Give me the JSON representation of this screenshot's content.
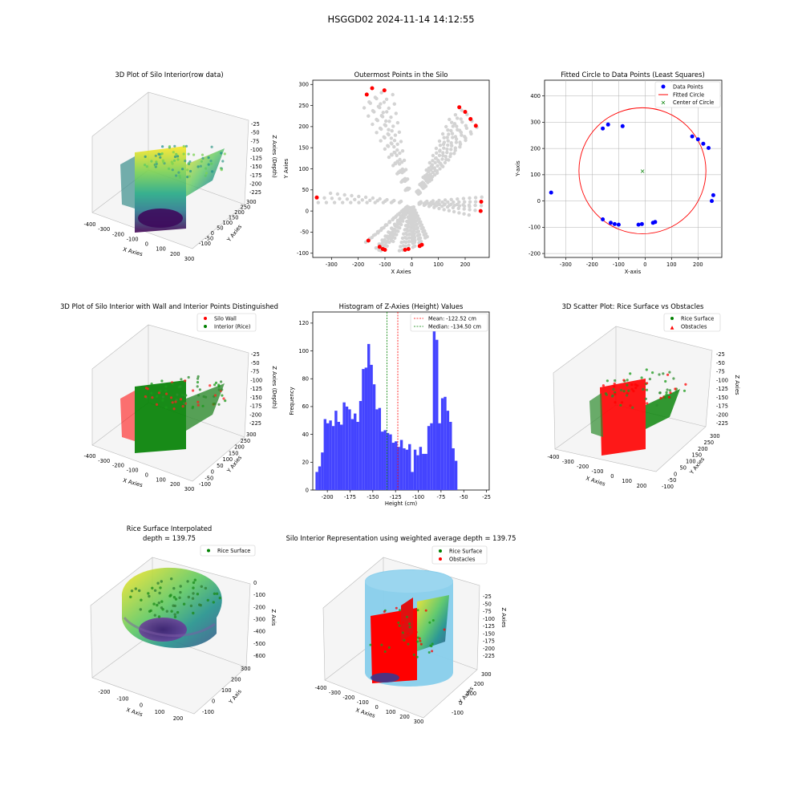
{
  "figure": {
    "suptitle": "HSGGD02 2024-11-14 14:12:55"
  },
  "colors": {
    "red": "#ff0000",
    "green": "#008000",
    "blue": "#0000ff",
    "gray": "#d3d3d3",
    "skyblue": "#87ceeb",
    "hist": "#4444ff"
  },
  "chart_data": [
    {
      "type": "scatter",
      "projection": "3d",
      "title": "3D Plot of Silo Interior(row data)",
      "xlabel": "X Axies",
      "ylabel": "Y Axies",
      "zlabel": "Z Axies (Depth)",
      "xticks": [
        "-400",
        "-300",
        "-200",
        "-100",
        "0",
        "100",
        "200",
        "300"
      ],
      "yticks": [
        "-100",
        "-50",
        "0",
        "50",
        "100",
        "150",
        "200",
        "250",
        "300"
      ],
      "zticks": [
        "-25",
        "-50",
        "-75",
        "-100",
        "-125",
        "-150",
        "-175",
        "-200",
        "-225"
      ],
      "xlim": [
        -400,
        300
      ],
      "ylim": [
        -100,
        300
      ],
      "zlim": [
        -225,
        -25
      ],
      "colormap": "viridis"
    },
    {
      "type": "scatter",
      "title": "Outermost Points in the Silo",
      "xlabel": "X Axies",
      "ylabel": "Y Axies",
      "xlim": [
        -370,
        290
      ],
      "ylim": [
        -110,
        310
      ],
      "xticks": [
        -300,
        -200,
        -100,
        0,
        100,
        200
      ],
      "yticks": [
        -100,
        -50,
        0,
        50,
        100,
        150,
        200,
        250,
        300
      ],
      "outer_points": [
        [
          -355,
          32
        ],
        [
          -168,
          276
        ],
        [
          -148,
          291
        ],
        [
          -102,
          286
        ],
        [
          -162,
          -70
        ],
        [
          -120,
          -85
        ],
        [
          -108,
          -90
        ],
        [
          -100,
          -92
        ],
        [
          -25,
          -92
        ],
        [
          -12,
          -90
        ],
        [
          30,
          -83
        ],
        [
          38,
          -80
        ],
        [
          178,
          246
        ],
        [
          200,
          235
        ],
        [
          220,
          218
        ],
        [
          240,
          202
        ],
        [
          260,
          22
        ],
        [
          258,
          0
        ]
      ]
    },
    {
      "type": "scatter",
      "title": "Fitted Circle to Data Points (Least Squares)",
      "xlabel": "X-axis",
      "ylabel": "Y-axis",
      "xlim": [
        -380,
        290
      ],
      "ylim": [
        -215,
        460
      ],
      "xticks": [
        -300,
        -200,
        -100,
        0,
        100,
        200
      ],
      "yticks": [
        -200,
        -100,
        0,
        100,
        200,
        300,
        400
      ],
      "grid": true,
      "legend": [
        "Data Points",
        "Fitted Circle",
        "Center of Circle"
      ],
      "legend_position": "top-right",
      "center": [
        -10,
        115
      ],
      "radius": 240,
      "points": [
        [
          -355,
          32
        ],
        [
          -160,
          276
        ],
        [
          -140,
          291
        ],
        [
          -85,
          285
        ],
        [
          -160,
          -70
        ],
        [
          -130,
          -83
        ],
        [
          -115,
          -88
        ],
        [
          -100,
          -90
        ],
        [
          -25,
          -90
        ],
        [
          -12,
          -88
        ],
        [
          30,
          -83
        ],
        [
          38,
          -80
        ],
        [
          178,
          246
        ],
        [
          200,
          235
        ],
        [
          220,
          218
        ],
        [
          240,
          202
        ],
        [
          258,
          22
        ],
        [
          252,
          0
        ]
      ]
    },
    {
      "type": "scatter",
      "projection": "3d",
      "title": "3D Plot of Silo Interior with Wall and Interior Points Distinguished",
      "xlabel": "X Axies",
      "ylabel": "Y Axies",
      "zlabel": "Z Axies (Depth)",
      "xticks": [
        "-400",
        "-300",
        "-200",
        "-100",
        "0",
        "100",
        "200",
        "300"
      ],
      "yticks": [
        "-100",
        "-50",
        "0",
        "50",
        "100",
        "150",
        "200",
        "250",
        "300"
      ],
      "zticks": [
        "-25",
        "-50",
        "-75",
        "-100",
        "-125",
        "-150",
        "-175",
        "-200",
        "-225"
      ],
      "legend": [
        "Silo Wall",
        "Interior (Rice)"
      ],
      "legend_position": "top-right"
    },
    {
      "type": "bar",
      "title": "Histogram of Z-Axies (Height) Values",
      "xlabel": "Height (cm)",
      "ylabel": "Frequency",
      "xlim": [
        -216,
        -22
      ],
      "ylim": [
        0,
        128
      ],
      "xticks": [
        -200,
        -175,
        -150,
        -125,
        -100,
        -75,
        -50,
        -25
      ],
      "yticks": [
        0,
        20,
        40,
        60,
        80,
        100,
        120
      ],
      "bin_start": -213,
      "bin_width": 3.0,
      "values": [
        13,
        17,
        27,
        51,
        48,
        50,
        46,
        57,
        49,
        47,
        63,
        60,
        58,
        51,
        55,
        49,
        64,
        87,
        88,
        105,
        90,
        76,
        58,
        59,
        42,
        43,
        41,
        40,
        34,
        35,
        31,
        36,
        30,
        29,
        33,
        13,
        29,
        25,
        31,
        26,
        26,
        46,
        48,
        116,
        108,
        48,
        66,
        67,
        57,
        49,
        30,
        21
      ],
      "mean": -122.52,
      "median": -134.5,
      "legend": [
        "Mean: -122.52 cm",
        "Median: -134.50 cm"
      ],
      "legend_position": "top-right"
    },
    {
      "type": "scatter",
      "projection": "3d",
      "title": "3D Scatter Plot: Rice Surface vs Obstacles",
      "xlabel": "X Axies",
      "ylabel": "Y Axies",
      "zlabel": "Z Axies",
      "xticks": [
        "-400",
        "-300",
        "-200",
        "-100",
        "0",
        "100",
        "200"
      ],
      "yticks": [
        "-100",
        "-50",
        "0",
        "50",
        "100",
        "150",
        "200",
        "250",
        "300"
      ],
      "zticks": [
        "-25",
        "-50",
        "-75",
        "-100",
        "-125",
        "-150",
        "-175",
        "-200",
        "-225"
      ],
      "legend": [
        "Rice Surface",
        "Obstacles"
      ],
      "legend_position": "top-right"
    },
    {
      "type": "scatter",
      "projection": "3d",
      "title": "Rice Surface Interpolated",
      "subtitle": "depth = 139.75",
      "xlabel": "X Axis",
      "ylabel": "Y Axis",
      "zlabel": "Z Axis",
      "xticks": [
        "-200",
        "-100",
        "0",
        "100",
        "200"
      ],
      "yticks": [
        "-100",
        "0",
        "100",
        "200",
        "300"
      ],
      "zticks": [
        "0",
        "-100",
        "-200",
        "-300",
        "-400",
        "-500",
        "-600"
      ],
      "legend": [
        "Rice Surface"
      ],
      "legend_position": "top-right"
    },
    {
      "type": "scatter",
      "projection": "3d",
      "title": "Silo Interior Representation using weighted average depth = 139.75",
      "xlabel": "X Axies",
      "ylabel": "Y Axies",
      "zlabel": "Z Axies",
      "xticks": [
        "-400",
        "-300",
        "-200",
        "-100",
        "0",
        "100",
        "200",
        "300"
      ],
      "yticks": [
        "-100",
        "0",
        "100",
        "200",
        "300"
      ],
      "zticks": [
        "-25",
        "-50",
        "-75",
        "-100",
        "-125",
        "-150",
        "-175",
        "-200",
        "-225"
      ],
      "legend": [
        "Rice Surface",
        "Obstacles"
      ],
      "legend_position": "top"
    }
  ]
}
